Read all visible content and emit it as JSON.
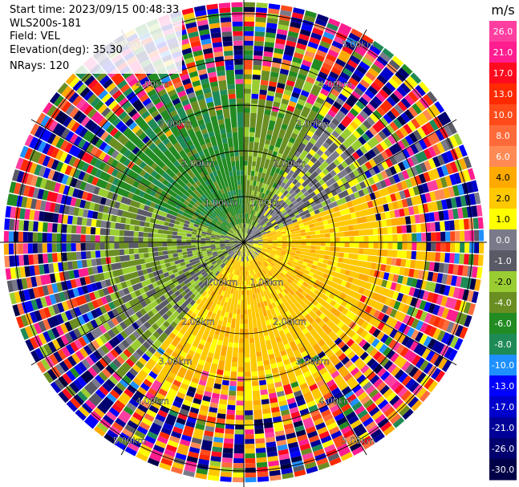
{
  "info": {
    "start_time": "Start time: 2023/09/15 00:48:33",
    "instrument": "WLS200s-181",
    "field": "Field: VEL",
    "elevation": "Elevation(deg): 35.30",
    "nrays": "NRays: 120"
  },
  "chart_data": {
    "type": "ppi",
    "field": "VEL",
    "units": "m/s",
    "nrays": 120,
    "elevation_deg": 35.3,
    "range_ring_labels": [
      "1.00km",
      "2.00km",
      "3.00km",
      "4.00km",
      "5.00km"
    ],
    "range_rings_km": [
      1,
      2,
      3,
      4,
      5
    ],
    "max_range_km": 5.3,
    "spoke_azimuths_deg": [
      0,
      30,
      60,
      90,
      120,
      150,
      180,
      210,
      240,
      270,
      300,
      330
    ],
    "regions": [
      {
        "az_from": 220,
        "az_to": 292,
        "typical_velocity": -1.5,
        "note": "west sector (yellow-green)"
      },
      {
        "az_from": 292,
        "az_to": 360,
        "typical_velocity": -5.0,
        "note": "northwest sector (dark green)"
      },
      {
        "az_from": 0,
        "az_to": 30,
        "typical_velocity": -3.0,
        "note": "north sector (olive/yellow-green)"
      },
      {
        "az_from": 30,
        "az_to": 70,
        "typical_velocity": 0.0,
        "note": "northeast sector (gray near zero)"
      },
      {
        "az_from": 70,
        "az_to": 220,
        "typical_velocity": 3.0,
        "note": "east/south sector (yellow with orange patches)"
      }
    ],
    "colorbar": {
      "units": "m/s",
      "labels": [
        "26.0",
        "21.0",
        "17.0",
        "13.0",
        "10.0",
        "8.0",
        "6.0",
        "4.0",
        "2.0",
        "1.0",
        "0.0",
        "-1.0",
        "-2.0",
        "-4.0",
        "-6.0",
        "-8.0",
        "-10.0",
        "-13.0",
        "-17.0",
        "-21.0",
        "-26.0",
        "-30.0"
      ],
      "bounds": [
        30,
        26,
        21,
        17,
        13,
        10,
        8,
        6,
        4,
        2,
        1,
        0,
        -1,
        -2,
        -4,
        -6,
        -8,
        -10,
        -13,
        -17,
        -21,
        -26,
        -30
      ],
      "colors": [
        "#ff3fa0",
        "#ff1d8f",
        "#ff0b1f",
        "#ff2a00",
        "#ff4a1a",
        "#ff6a3a",
        "#ff8a55",
        "#ffaa00",
        "#ffc800",
        "#ffff00",
        "#7a7a8a",
        "#5a5a66",
        "#9acd32",
        "#6b8e23",
        "#228b22",
        "#1e8b57",
        "#1e90ff",
        "#0000ff",
        "#0000cc",
        "#000099",
        "#00006e",
        "#000048"
      ]
    }
  }
}
